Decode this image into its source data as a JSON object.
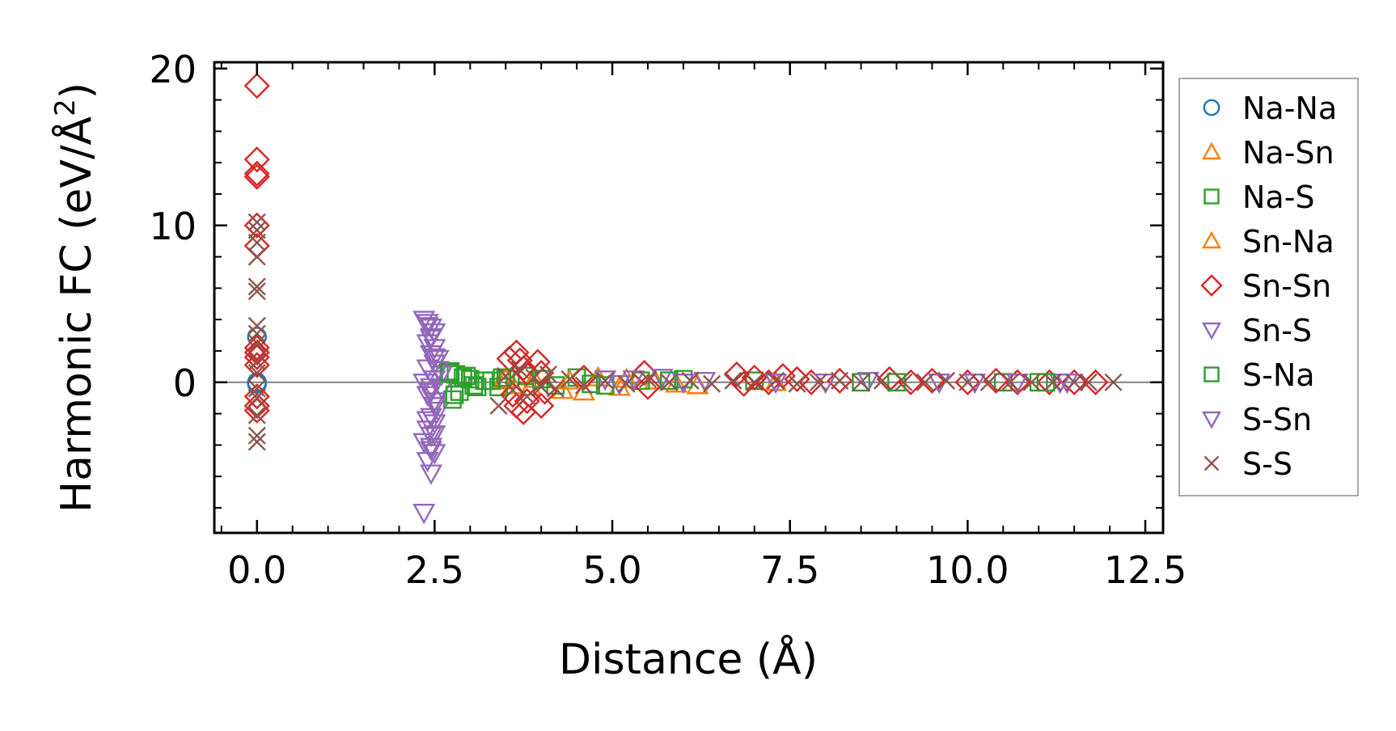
{
  "chart_data": {
    "type": "scatter",
    "title": "",
    "xlabel": "Distance (Å)",
    "ylabel_main": "Harmonic FC (eV/Å",
    "ylabel_sup": "2",
    "ylabel_close": ")",
    "xlim": [
      -0.6,
      12.75
    ],
    "ylim": [
      -9.6,
      20.4
    ],
    "x_ticks": [
      0.0,
      2.5,
      5.0,
      7.5,
      10.0,
      12.5
    ],
    "x_tick_labels": [
      "0.0",
      "2.5",
      "5.0",
      "7.5",
      "10.0",
      "12.5"
    ],
    "y_ticks": [
      0,
      10,
      20
    ],
    "y_tick_labels": [
      "0",
      "10",
      "20"
    ],
    "zero_line": true,
    "legend_position": "right",
    "series": [
      {
        "name": "Na-Na",
        "marker": "circle",
        "color": "#1f77b4",
        "points": [
          [
            0.0,
            2.9
          ],
          [
            0.0,
            0.0
          ],
          [
            0.0,
            -0.1
          ]
        ]
      },
      {
        "name": "Na-Sn",
        "marker": "triangle-up",
        "color": "#ff7f0e",
        "points": [
          [
            3.45,
            0.1
          ],
          [
            3.6,
            -0.2
          ],
          [
            3.9,
            0.2
          ],
          [
            4.3,
            -0.5
          ],
          [
            4.6,
            -0.6
          ],
          [
            4.8,
            0.3
          ],
          [
            5.1,
            -0.3
          ],
          [
            5.6,
            0.1
          ],
          [
            6.2,
            -0.2
          ]
        ]
      },
      {
        "name": "Na-S",
        "marker": "square",
        "color": "#2ca02c",
        "points": [
          [
            2.72,
            0.7
          ],
          [
            2.75,
            -1.1
          ],
          [
            2.8,
            0.5
          ],
          [
            2.85,
            -0.6
          ],
          [
            2.9,
            0.3
          ],
          [
            3.0,
            0.2
          ],
          [
            3.1,
            -0.3
          ],
          [
            3.2,
            0.1
          ],
          [
            3.4,
            -0.3
          ],
          [
            3.5,
            0.2
          ],
          [
            3.8,
            0.4
          ],
          [
            4.2,
            -0.2
          ],
          [
            4.5,
            0.3
          ],
          [
            4.9,
            -0.2
          ],
          [
            5.4,
            0.1
          ],
          [
            6.0,
            0.2
          ],
          [
            7.0,
            0.1
          ],
          [
            8.5,
            0.0
          ],
          [
            10.5,
            0.0
          ],
          [
            11.0,
            0.0
          ]
        ]
      },
      {
        "name": "Sn-Na",
        "marker": "triangle-up",
        "color": "#ff7f0e",
        "points": [
          [
            3.5,
            0.2
          ],
          [
            3.85,
            -0.3
          ],
          [
            4.4,
            0.1
          ],
          [
            5.2,
            0.2
          ],
          [
            5.9,
            -0.1
          ],
          [
            7.3,
            0.0
          ]
        ]
      },
      {
        "name": "Sn-Sn",
        "marker": "diamond",
        "color": "#d62728",
        "points": [
          [
            0.0,
            18.9
          ],
          [
            0.0,
            14.2
          ],
          [
            0.0,
            13.3
          ],
          [
            0.0,
            13.1
          ],
          [
            0.0,
            10.0
          ],
          [
            0.0,
            8.7
          ],
          [
            0.0,
            2.2
          ],
          [
            0.0,
            1.9
          ],
          [
            0.0,
            1.6
          ],
          [
            0.0,
            1.1
          ],
          [
            0.0,
            -0.9
          ],
          [
            0.0,
            -1.5
          ],
          [
            0.0,
            -1.8
          ],
          [
            3.55,
            1.5
          ],
          [
            3.65,
            1.9
          ],
          [
            3.7,
            1.4
          ],
          [
            3.75,
            0.9
          ],
          [
            3.8,
            0.6
          ],
          [
            3.6,
            -0.8
          ],
          [
            3.65,
            -1.5
          ],
          [
            3.75,
            -1.9
          ],
          [
            3.8,
            -1.2
          ],
          [
            3.95,
            1.3
          ],
          [
            4.0,
            0.6
          ],
          [
            4.05,
            -0.6
          ],
          [
            4.0,
            -1.5
          ],
          [
            4.6,
            0.3
          ],
          [
            5.45,
            0.6
          ],
          [
            5.5,
            -0.3
          ],
          [
            6.75,
            0.5
          ],
          [
            6.85,
            -0.1
          ],
          [
            7.0,
            0.3
          ],
          [
            7.2,
            0.0
          ],
          [
            7.4,
            0.4
          ],
          [
            7.6,
            0.2
          ],
          [
            7.8,
            0.0
          ],
          [
            8.2,
            0.1
          ],
          [
            8.9,
            0.2
          ],
          [
            9.2,
            0.0
          ],
          [
            9.5,
            0.1
          ],
          [
            10.0,
            0.0
          ],
          [
            10.4,
            0.1
          ],
          [
            10.7,
            0.0
          ],
          [
            11.15,
            0.0
          ],
          [
            11.5,
            0.0
          ],
          [
            11.8,
            0.0
          ]
        ]
      },
      {
        "name": "Sn-S",
        "marker": "triangle-down",
        "color": "#9467bd",
        "points": [
          [
            2.35,
            4.0
          ],
          [
            2.4,
            3.8
          ],
          [
            2.45,
            3.5
          ],
          [
            2.5,
            3.2
          ],
          [
            2.45,
            2.8
          ],
          [
            2.4,
            2.5
          ],
          [
            2.5,
            2.2
          ],
          [
            2.45,
            1.8
          ],
          [
            2.55,
            1.5
          ],
          [
            2.5,
            1.2
          ],
          [
            2.4,
            0.9
          ],
          [
            2.6,
            0.5
          ],
          [
            2.5,
            0.2
          ],
          [
            2.35,
            0.0
          ],
          [
            2.45,
            -0.3
          ],
          [
            2.6,
            -0.4
          ],
          [
            2.4,
            -0.8
          ],
          [
            2.5,
            -1.2
          ],
          [
            2.55,
            -1.8
          ],
          [
            2.45,
            -2.2
          ],
          [
            2.5,
            -2.6
          ],
          [
            2.4,
            -3.0
          ],
          [
            2.45,
            -3.4
          ],
          [
            2.35,
            -3.8
          ],
          [
            2.45,
            -4.1
          ],
          [
            2.5,
            -4.5
          ],
          [
            2.4,
            -5.0
          ],
          [
            2.45,
            -5.8
          ],
          [
            2.35,
            -8.3
          ],
          [
            4.9,
            0.2
          ],
          [
            5.1,
            -0.1
          ],
          [
            5.7,
            0.3
          ],
          [
            6.3,
            0.1
          ],
          [
            7.3,
            0.0
          ],
          [
            8.6,
            0.1
          ],
          [
            9.6,
            0.0
          ],
          [
            10.7,
            0.0
          ],
          [
            11.3,
            0.0
          ]
        ]
      },
      {
        "name": "S-Na",
        "marker": "square",
        "color": "#2ca02c",
        "points": [
          [
            2.7,
            0.6
          ],
          [
            2.78,
            -0.8
          ],
          [
            2.95,
            0.4
          ],
          [
            3.05,
            -0.2
          ],
          [
            3.3,
            0.1
          ],
          [
            3.45,
            0.3
          ],
          [
            4.0,
            0.2
          ],
          [
            4.7,
            -0.1
          ],
          [
            5.8,
            0.1
          ],
          [
            9.0,
            0.0
          ],
          [
            11.1,
            0.0
          ]
        ]
      },
      {
        "name": "S-Sn",
        "marker": "triangle-down",
        "color": "#9467bd",
        "points": [
          [
            2.4,
            3.6
          ],
          [
            2.45,
            2.9
          ],
          [
            2.5,
            1.6
          ],
          [
            2.55,
            0.8
          ],
          [
            2.45,
            -0.6
          ],
          [
            2.5,
            -1.5
          ],
          [
            2.4,
            -2.4
          ],
          [
            2.5,
            -3.3
          ],
          [
            2.45,
            -4.3
          ],
          [
            5.3,
            0.2
          ],
          [
            6.0,
            0.0
          ],
          [
            8.0,
            0.0
          ],
          [
            10.1,
            0.0
          ],
          [
            11.4,
            0.0
          ]
        ]
      },
      {
        "name": "S-S",
        "marker": "x",
        "color": "#8c564b",
        "points": [
          [
            0.0,
            10.2
          ],
          [
            0.0,
            9.7
          ],
          [
            0.0,
            8.9
          ],
          [
            0.0,
            8.0
          ],
          [
            0.0,
            6.1
          ],
          [
            0.0,
            5.8
          ],
          [
            0.0,
            3.6
          ],
          [
            0.0,
            3.1
          ],
          [
            0.0,
            2.5
          ],
          [
            0.0,
            1.3
          ],
          [
            0.0,
            0.6
          ],
          [
            0.0,
            -0.4
          ],
          [
            0.0,
            -1.0
          ],
          [
            0.0,
            -2.1
          ],
          [
            0.0,
            -3.4
          ],
          [
            0.0,
            -3.8
          ],
          [
            3.4,
            -1.5
          ],
          [
            3.5,
            0.4
          ],
          [
            3.6,
            -0.5
          ],
          [
            3.7,
            0.8
          ],
          [
            3.8,
            -0.9
          ],
          [
            3.9,
            0.3
          ],
          [
            4.0,
            -0.3
          ],
          [
            4.1,
            0.5
          ],
          [
            4.2,
            -0.4
          ],
          [
            4.4,
            0.2
          ],
          [
            4.6,
            -0.2
          ],
          [
            4.9,
            0.1
          ],
          [
            5.2,
            -0.1
          ],
          [
            5.5,
            0.2
          ],
          [
            5.8,
            0.0
          ],
          [
            6.1,
            0.1
          ],
          [
            6.4,
            -0.1
          ],
          [
            6.7,
            0.1
          ],
          [
            7.0,
            0.0
          ],
          [
            7.3,
            0.1
          ],
          [
            7.6,
            -0.1
          ],
          [
            7.9,
            0.0
          ],
          [
            8.2,
            0.1
          ],
          [
            8.5,
            0.0
          ],
          [
            8.8,
            0.1
          ],
          [
            9.1,
            0.0
          ],
          [
            9.4,
            0.0
          ],
          [
            9.7,
            0.1
          ],
          [
            10.0,
            0.0
          ],
          [
            10.3,
            0.0
          ],
          [
            10.6,
            0.0
          ],
          [
            10.9,
            0.0
          ],
          [
            11.2,
            0.0
          ],
          [
            11.5,
            0.0
          ],
          [
            11.7,
            0.0
          ],
          [
            12.05,
            0.0
          ]
        ]
      }
    ]
  }
}
